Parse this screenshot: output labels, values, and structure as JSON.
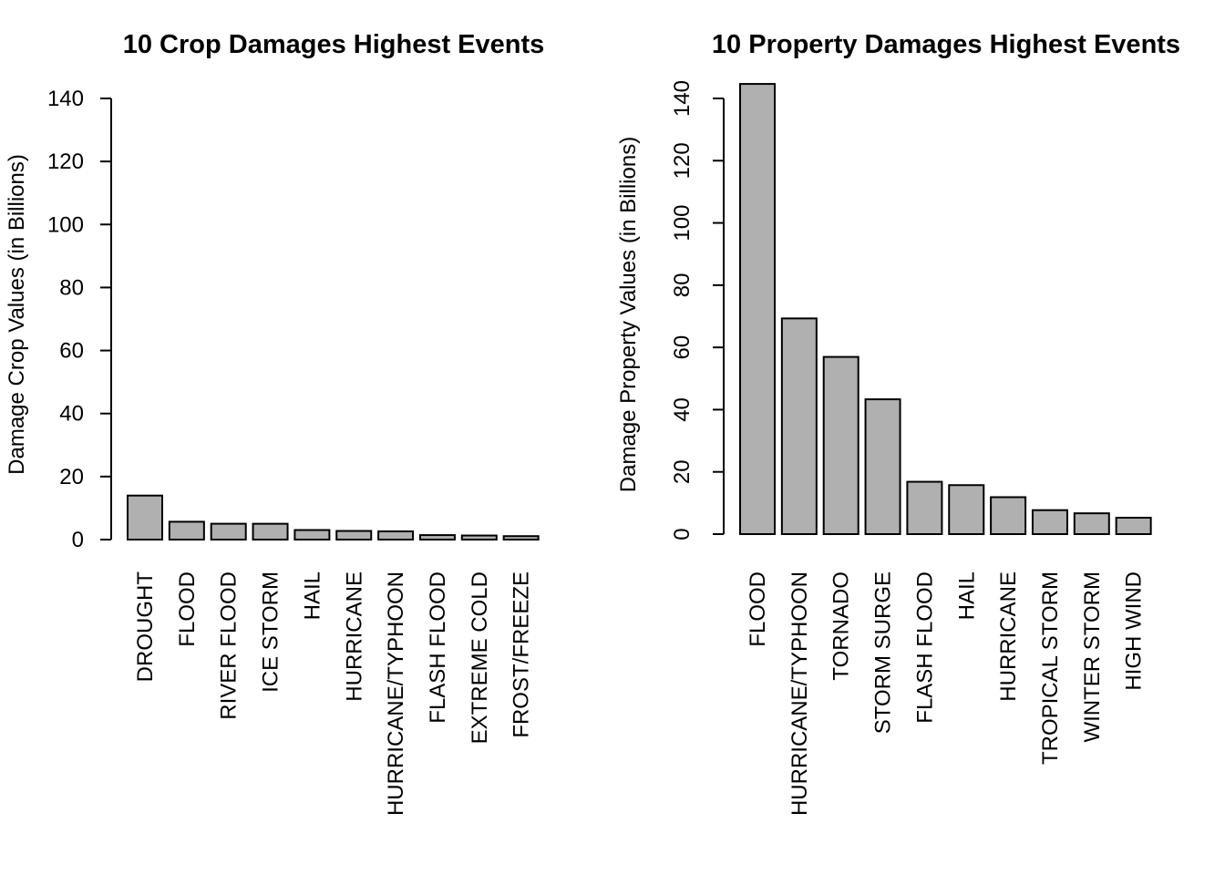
{
  "chart_data": [
    {
      "type": "bar",
      "title": "10 Crop Damages Highest Events",
      "ylabel": "Damage Crop Values (in Billions)",
      "xlabel": "",
      "ylim": [
        0,
        140
      ],
      "yticks": [
        0,
        20,
        40,
        60,
        80,
        100,
        120,
        140
      ],
      "ytick_orientation": "horizontal",
      "bar_color": "#b0b0b0",
      "categories": [
        "DROUGHT",
        "FLOOD",
        "RIVER FLOOD",
        "ICE STORM",
        "HAIL",
        "HURRICANE",
        "HURRICANE/TYPHOON",
        "FLASH FLOOD",
        "EXTREME COLD",
        "FROST/FREEZE"
      ],
      "values": [
        13.97,
        5.66,
        5.03,
        5.02,
        3.03,
        2.74,
        2.61,
        1.42,
        1.29,
        1.09
      ]
    },
    {
      "type": "bar",
      "title": "10 Property Damages Highest Events",
      "ylabel": "Damage Property Values (in Billions)",
      "xlabel": "",
      "ylim": [
        0,
        140
      ],
      "yticks": [
        0,
        20,
        40,
        60,
        80,
        100,
        120,
        140
      ],
      "ytick_orientation": "vertical",
      "bar_color": "#b0b0b0",
      "categories": [
        "FLOOD",
        "HURRICANE/TYPHOON",
        "TORNADO",
        "STORM SURGE",
        "FLASH FLOOD",
        "HAIL",
        "HURRICANE",
        "TROPICAL STORM",
        "WINTER STORM",
        "HIGH WIND"
      ],
      "values": [
        144.66,
        69.31,
        56.94,
        43.32,
        16.82,
        15.74,
        11.87,
        7.7,
        6.69,
        5.27
      ]
    }
  ]
}
